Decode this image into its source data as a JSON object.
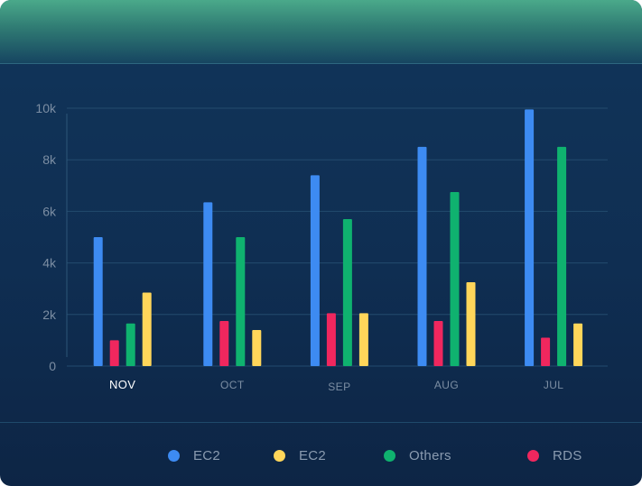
{
  "chart_data": {
    "type": "bar",
    "categories": [
      "NOV",
      "OCT",
      "SEP",
      "AUG",
      "JUL"
    ],
    "active_category": "NOV",
    "ylim": [
      0,
      10000
    ],
    "yticks": [
      {
        "value": 0,
        "label": "0"
      },
      {
        "value": 2000,
        "label": "2k"
      },
      {
        "value": 4000,
        "label": "4k"
      },
      {
        "value": 6000,
        "label": "6k"
      },
      {
        "value": 8000,
        "label": "8k"
      },
      {
        "value": 10000,
        "label": "10k"
      }
    ],
    "grid": true,
    "legend_position": "bottom",
    "series": [
      {
        "name": "EC2",
        "color": "#3d8bf2",
        "values": [
          5000,
          6350,
          7400,
          8500,
          9950
        ]
      },
      {
        "name": "RDS",
        "color": "#f0275e",
        "values": [
          1000,
          1750,
          2050,
          1750,
          1100
        ]
      },
      {
        "name": "Others",
        "color": "#0fb26f",
        "values": [
          1650,
          5000,
          5700,
          6750,
          8500
        ]
      },
      {
        "name": "EC2",
        "color": "#ffd65a",
        "values": [
          2850,
          1400,
          2050,
          3250,
          1650
        ]
      }
    ]
  },
  "legend": [
    {
      "label": "EC2",
      "color": "#3d8bf2"
    },
    {
      "label": "EC2",
      "color": "#ffd65a"
    },
    {
      "label": "Others",
      "color": "#0fb26f"
    },
    {
      "label": "RDS",
      "color": "#f0275e"
    }
  ]
}
